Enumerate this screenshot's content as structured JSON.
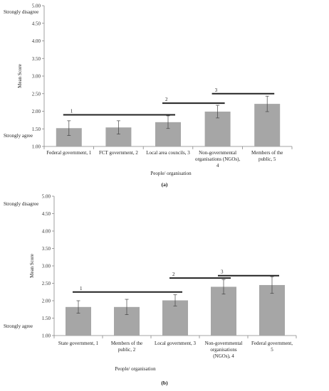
{
  "chart_data": [
    {
      "type": "bar",
      "panel_label": "(a)",
      "categories": [
        [
          "Federal government, 1"
        ],
        [
          "FCT government, 2"
        ],
        [
          "Local area councils, 3"
        ],
        [
          "Non-governmental",
          "organisations (NGOs),",
          "4"
        ],
        [
          "Members of the",
          "public, 5"
        ]
      ],
      "values": [
        1.52,
        1.54,
        1.69,
        1.99,
        2.21
      ],
      "errors": [
        0.21,
        0.19,
        0.18,
        0.18,
        0.22
      ],
      "ylim": [
        1.0,
        5.0
      ],
      "yticks": [
        "1.00",
        "1.50",
        "2.00",
        "2.50",
        "3.00",
        "3.50",
        "4.00",
        "4.50",
        "5.00"
      ],
      "ylabel": "Mean Score",
      "xlabel": "People/ organisation",
      "y_top_label": "Strongly disagree",
      "y_bottom_label": "Strongly agree",
      "groupings": [
        {
          "label": "1",
          "from": 0,
          "to": 2,
          "y": 1.9
        },
        {
          "label": "2",
          "from": 2,
          "to": 3,
          "y": 2.23
        },
        {
          "label": "3",
          "from": 3,
          "to": 4,
          "y": 2.5
        }
      ],
      "bar_color": "#a6a6a6",
      "grid": false
    },
    {
      "type": "bar",
      "panel_label": "(b)",
      "categories": [
        [
          "State government, 1"
        ],
        [
          "Members of the",
          "public, 2"
        ],
        [
          "Local government, 3"
        ],
        [
          "Non-governmental",
          "organisations",
          "(NGOs), 4"
        ],
        [
          "Federal government,",
          "5"
        ]
      ],
      "values": [
        1.82,
        1.82,
        2.01,
        2.4,
        2.45
      ],
      "errors": [
        0.18,
        0.22,
        0.16,
        0.21,
        0.24
      ],
      "ylim": [
        1.0,
        5.0
      ],
      "yticks": [
        "1.00",
        "1.50",
        "2.00",
        "2.50",
        "3.00",
        "3.50",
        "4.00",
        "4.50",
        "5.00"
      ],
      "ylabel": "Mean Score",
      "xlabel": "People/ organisation",
      "y_top_label": "Strongly disagree",
      "y_bottom_label": "Strongly agree",
      "groupings": [
        {
          "label": "1",
          "from": 0,
          "to": 2,
          "y": 2.25
        },
        {
          "label": "2",
          "from": 2,
          "to": 3,
          "y": 2.65
        },
        {
          "label": "3",
          "from": 3,
          "to": 4,
          "y": 2.72
        }
      ],
      "bar_color": "#a6a6a6",
      "grid": false
    }
  ]
}
